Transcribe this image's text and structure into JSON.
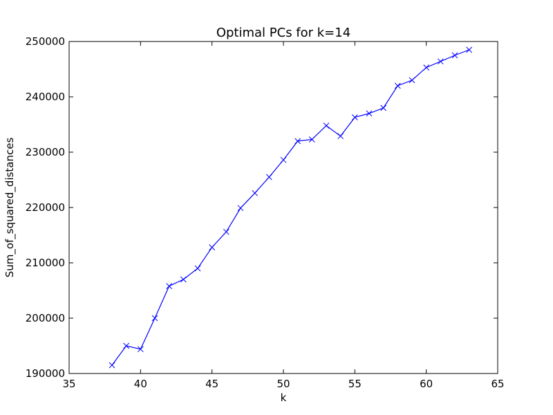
{
  "chart_data": {
    "type": "line",
    "title": "Optimal PCs for k=14",
    "xlabel": "k",
    "ylabel": "Sum_of_squared_distances",
    "xlim": [
      35,
      65
    ],
    "ylim": [
      190000,
      250000
    ],
    "xticks": [
      35,
      40,
      45,
      50,
      55,
      60,
      65
    ],
    "yticks": [
      190000,
      200000,
      210000,
      220000,
      230000,
      240000,
      250000
    ],
    "grid": false,
    "series": [
      {
        "color": "#0000ff",
        "marker": "x",
        "x": [
          38,
          39,
          40,
          41,
          42,
          43,
          44,
          45,
          46,
          47,
          48,
          49,
          50,
          51,
          52,
          53,
          54,
          55,
          56,
          57,
          58,
          59,
          60,
          61,
          62,
          63
        ],
        "y": [
          191500,
          195000,
          194400,
          200000,
          205800,
          207000,
          209000,
          212800,
          215600,
          219900,
          222600,
          225500,
          228600,
          232000,
          232300,
          234800,
          232900,
          236300,
          237000,
          238000,
          242000,
          243000,
          245300,
          246400,
          247500,
          248500
        ]
      }
    ]
  }
}
